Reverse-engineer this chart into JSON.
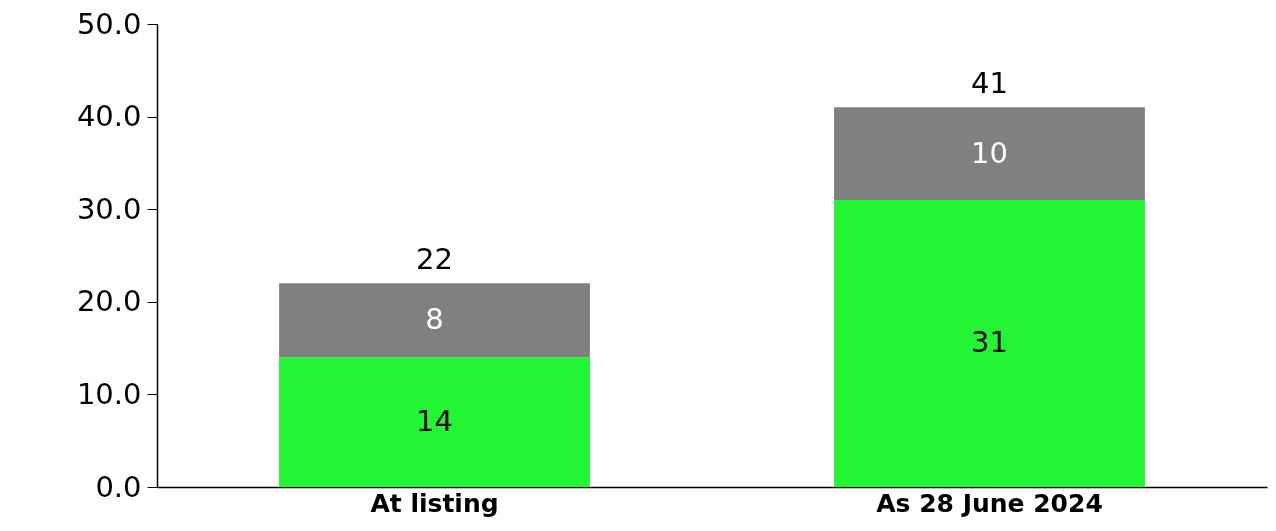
{
  "chart_data": {
    "type": "bar",
    "stacked": true,
    "categories": [
      "At listing",
      "As 28 June 2024"
    ],
    "series": [
      {
        "color": "#22f533",
        "values": [
          14,
          31
        ]
      },
      {
        "color": "#808080",
        "values": [
          8,
          10
        ]
      }
    ],
    "ylim": [
      0,
      50
    ],
    "yticks": [
      {
        "value": 0,
        "label": "0.0"
      },
      {
        "value": 10,
        "label": "10.0"
      },
      {
        "value": 20,
        "label": "20.0"
      },
      {
        "value": 30,
        "label": "30.0"
      },
      {
        "value": 40,
        "label": "40.0"
      },
      {
        "value": 50,
        "label": "50.0"
      }
    ],
    "data_labels": true,
    "totals": [
      "22",
      "41"
    ],
    "grid": false
  }
}
